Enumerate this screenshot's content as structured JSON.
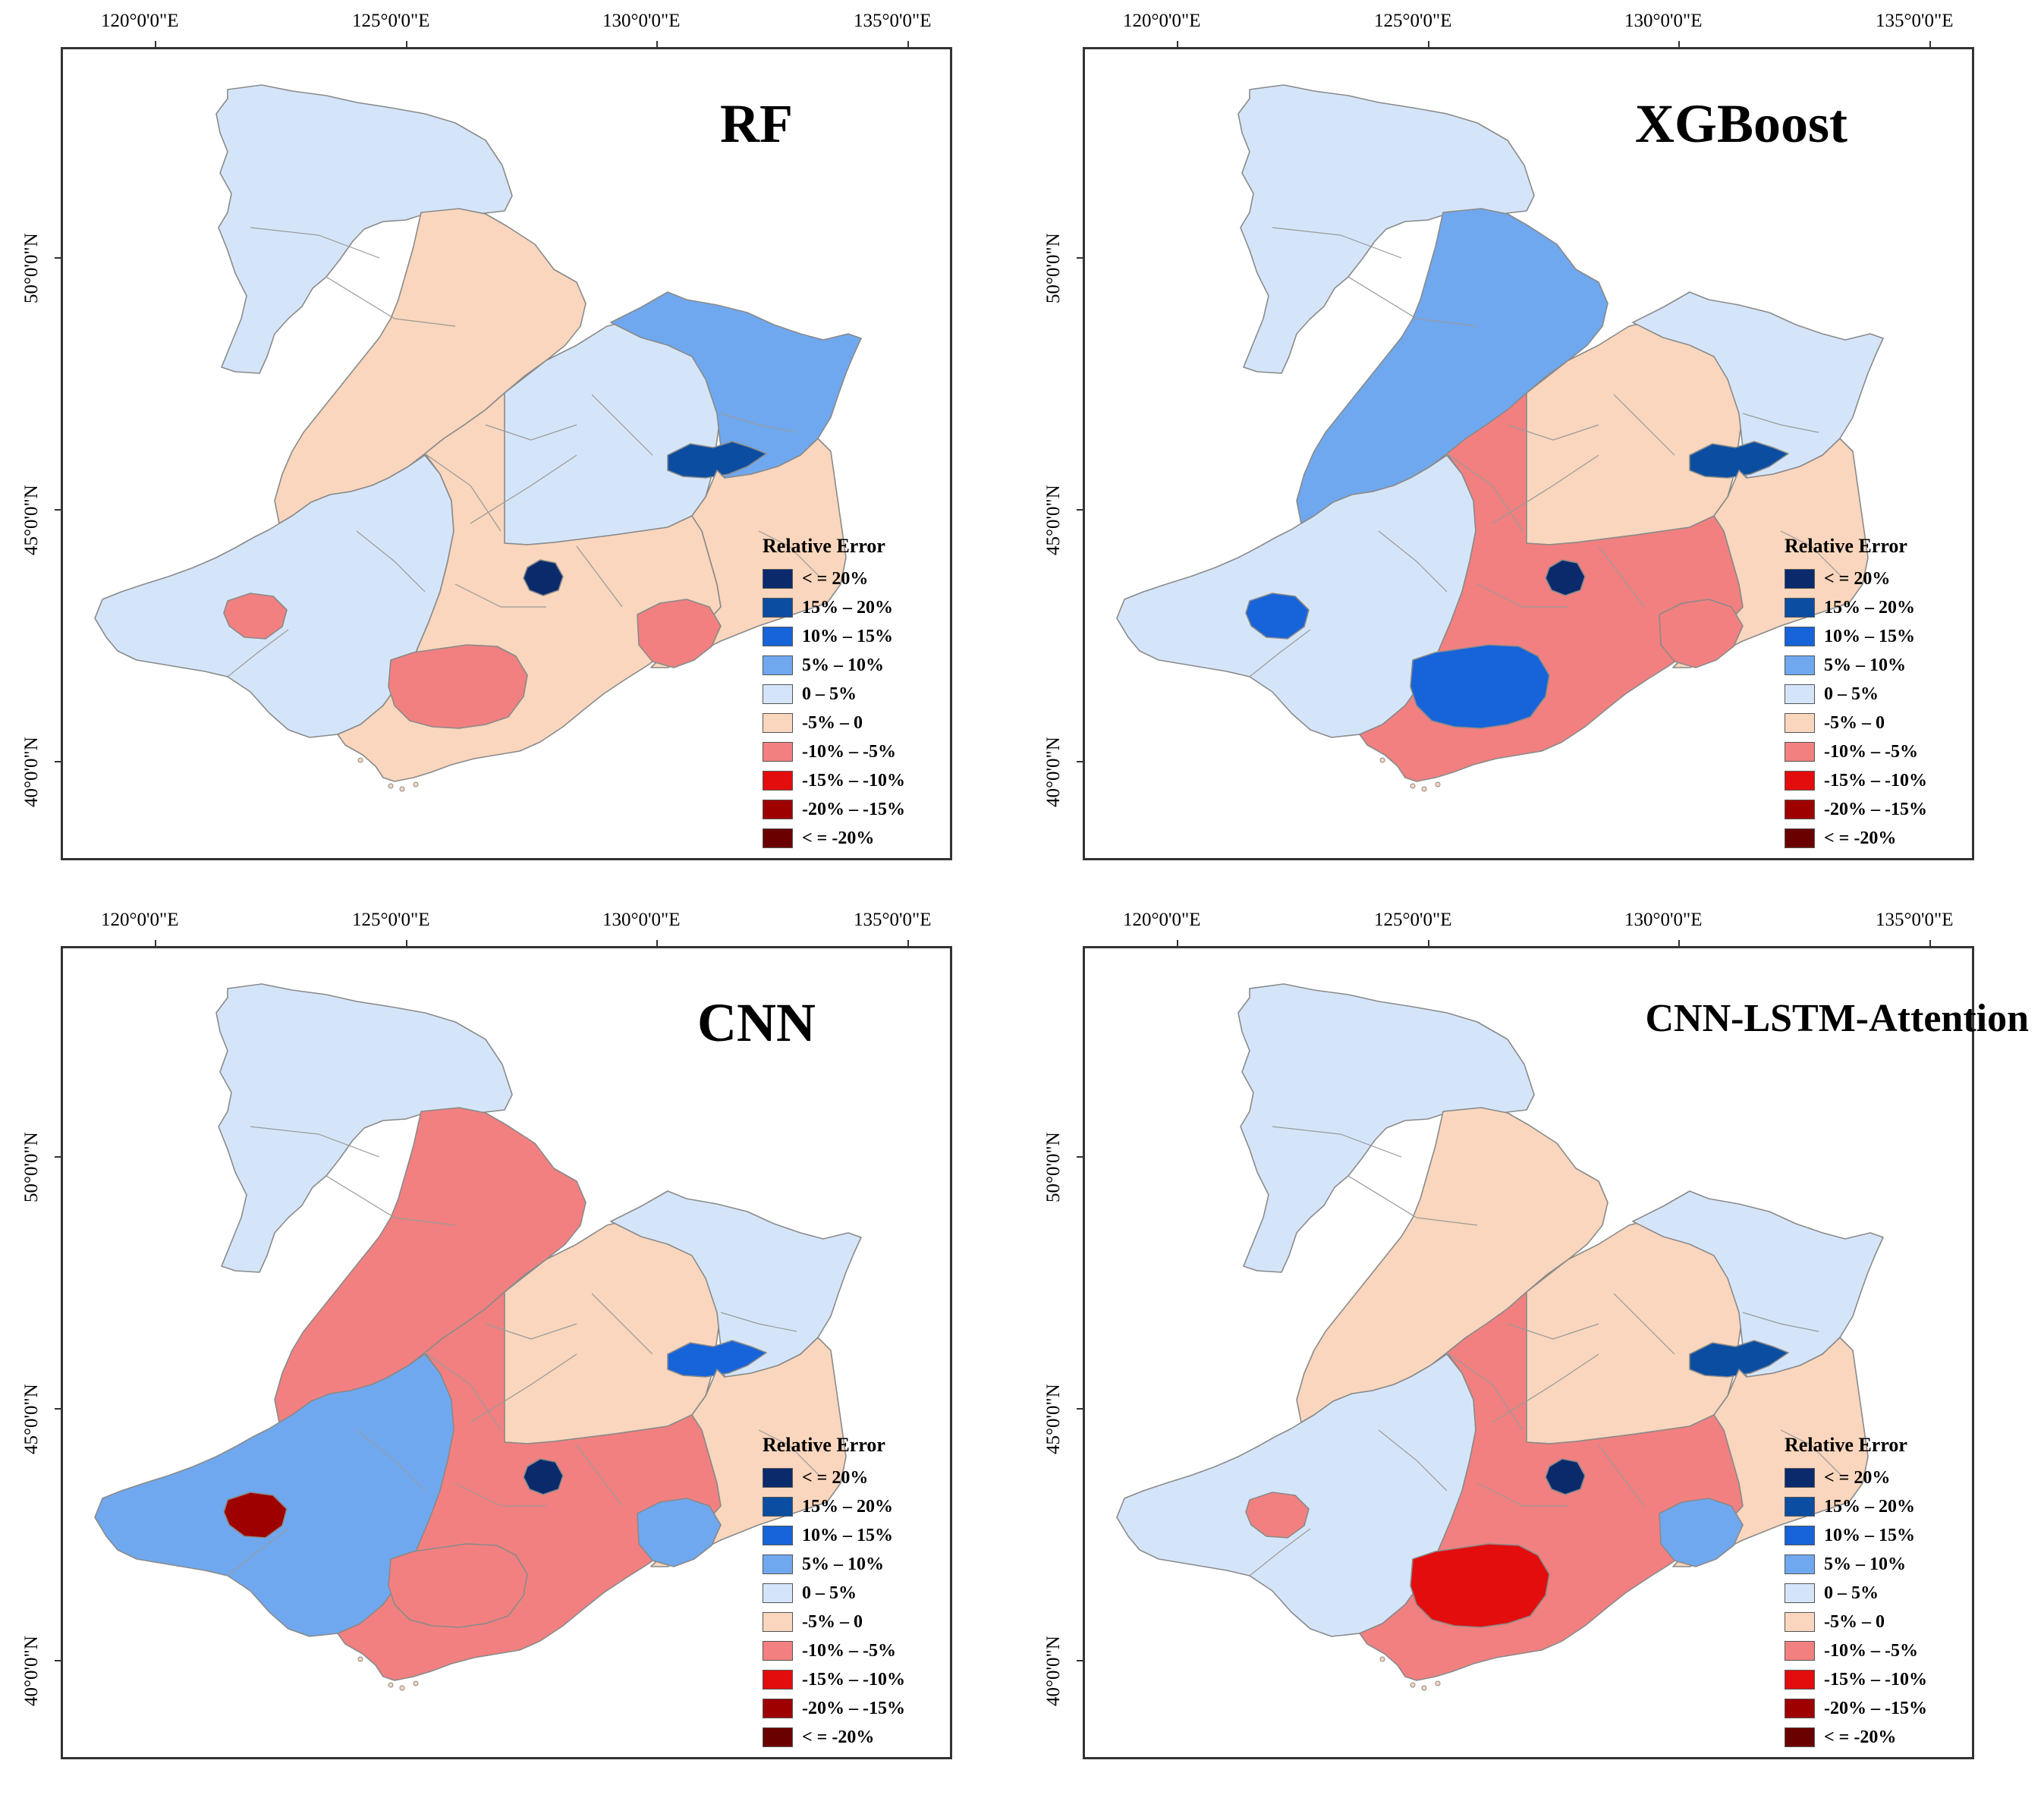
{
  "x_ticks": [
    "120°0'0\"E",
    "125°0'0\"E",
    "130°0'0\"E",
    "135°0'0\"E"
  ],
  "y_ticks": [
    "50°0'0\"N",
    "45°0'0\"N",
    "40°0'0\"N"
  ],
  "legend": {
    "title": "Relative Error",
    "classes": [
      {
        "label": "< = 20%",
        "color": "#0b2a6b"
      },
      {
        "label": "15% – 20%",
        "color": "#0b4ea1"
      },
      {
        "label": "10% – 15%",
        "color": "#1763d9"
      },
      {
        "label": "5% – 10%",
        "color": "#6fa8ef"
      },
      {
        "label": "0 – 5%",
        "color": "#d5e5f9"
      },
      {
        "label": "-5% – 0",
        "color": "#f9d6bd"
      },
      {
        "label": "-10% – -5%",
        "color": "#f28080"
      },
      {
        "label": "-15% – -10%",
        "color": "#e30d0d"
      },
      {
        "label": "-20% – -15%",
        "color": "#9e0000"
      },
      {
        "label": "< = -20%",
        "color": "#6b0000"
      }
    ]
  },
  "panels": [
    {
      "id": "rf",
      "title": "RF",
      "regions": {
        "north": "0 – 5%",
        "central_west": "-5% – 0",
        "central_east": "0 – 5%",
        "northeast": "5% – 10%",
        "east_strip": "15% – 20%",
        "southwest": "0 – 5%",
        "south": "-5% – 0",
        "southeast": "-5% – 0",
        "hotspot_center": "< = 20%",
        "hotspot_southwest": "-10% – -5%",
        "hotspot_east": "-10% – -5%",
        "hotspot_west": "-10% – -5%"
      }
    },
    {
      "id": "xgboost",
      "title": "XGBoost",
      "regions": {
        "north": "0 – 5%",
        "central_west": "5% – 10%",
        "central_east": "-5% – 0",
        "northeast": "0 – 5%",
        "east_strip": "15% – 20%",
        "southwest": "0 – 5%",
        "south": "-10% – -5%",
        "southeast": "-5% – 0",
        "hotspot_center": "< = 20%",
        "hotspot_southwest": "10% – 15%",
        "hotspot_east": "-10% – -5%",
        "hotspot_west": "10% – 15%"
      }
    },
    {
      "id": "cnn",
      "title": "CNN",
      "regions": {
        "north": "0 – 5%",
        "central_west": "-10% – -5%",
        "central_east": "-5% – 0",
        "northeast": "0 – 5%",
        "east_strip": "10% – 15%",
        "southwest": "5% – 10%",
        "south": "-10% – -5%",
        "southeast": "-5% – 0",
        "hotspot_center": "< = 20%",
        "hotspot_southwest": "-10% – -5%",
        "hotspot_east": "5% – 10%",
        "hotspot_west": "-20% – -15%"
      }
    },
    {
      "id": "cnn-lstm-attention",
      "title": "CNN-LSTM-Attention",
      "regions": {
        "north": "0 – 5%",
        "central_west": "-5% – 0",
        "central_east": "-5% – 0",
        "northeast": "0 – 5%",
        "east_strip": "15% – 20%",
        "southwest": "0 – 5%",
        "south": "-10% – -5%",
        "southeast": "-5% – 0",
        "hotspot_center": "< = 20%",
        "hotspot_southwest": "-15% – -10%",
        "hotspot_east": "5% – 10%",
        "hotspot_west": "-10% – -5%"
      }
    }
  ]
}
